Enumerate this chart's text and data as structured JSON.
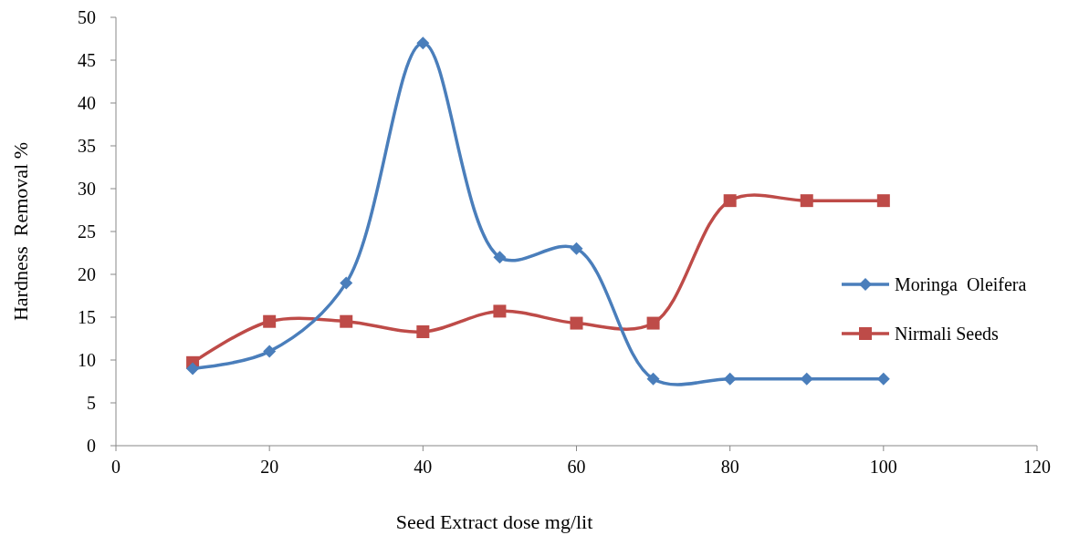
{
  "chart_data": {
    "type": "line",
    "xlabel": "Seed Extract dose mg/lit",
    "ylabel": "Hardness  Removal %",
    "x": [
      10,
      20,
      30,
      40,
      50,
      60,
      70,
      80,
      90,
      100
    ],
    "series": [
      {
        "name": "Moringa  Oleifera",
        "color": "#4a7ebb",
        "marker": "diamond",
        "values": [
          9,
          11,
          19,
          47,
          22,
          23,
          7.8,
          7.8,
          7.8,
          7.8
        ]
      },
      {
        "name": "Nirmali Seeds",
        "color": "#be4b48",
        "marker": "square",
        "values": [
          9.7,
          14.5,
          14.5,
          13.3,
          15.7,
          14.3,
          14.3,
          28.6,
          28.6,
          28.6
        ]
      }
    ],
    "xlim": [
      0,
      120
    ],
    "xticks": [
      0,
      20,
      40,
      60,
      80,
      100,
      120
    ],
    "ylim": [
      0,
      50
    ],
    "yticks": [
      0,
      5,
      10,
      15,
      20,
      25,
      30,
      35,
      40,
      45,
      50
    ],
    "grid": false,
    "legend": "right",
    "line_style": "solid"
  }
}
